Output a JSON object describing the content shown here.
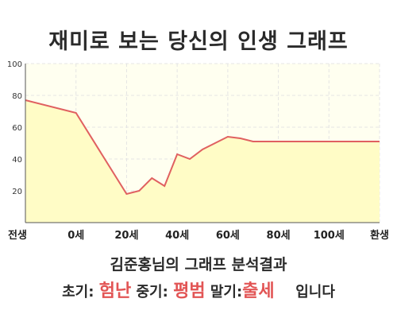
{
  "header": {
    "title": "재미로 보는 당신의 인생 그래프"
  },
  "footer": {
    "subtitle": "김준홍님의 그래프 분석결과",
    "early_label": "초기:",
    "early_value": "험난",
    "mid_label": "중기:",
    "mid_value": "평범",
    "late_label": "말기:",
    "late_value": "출세",
    "tail": "입니다"
  },
  "colors": {
    "line": "#e06060",
    "fill": "#fffcc6",
    "plot_bg": "#fffff0",
    "grid": "#e4e4e4",
    "result": "#e25555"
  },
  "chart_data": {
    "type": "area",
    "title": "재미로 보는 당신의 인생 그래프",
    "xlabel": "",
    "ylabel": "",
    "x_tick_labels": [
      "전생",
      "0세",
      "20세",
      "40세",
      "60세",
      "80세",
      "100세",
      "환생"
    ],
    "x_ticks": [
      -20,
      0,
      20,
      40,
      60,
      80,
      100,
      120
    ],
    "xlim": [
      -20,
      120
    ],
    "y_ticks": [
      20,
      40,
      60,
      80,
      100
    ],
    "ylim": [
      0,
      100
    ],
    "grid": true,
    "series": [
      {
        "x": [
          -20,
          0,
          20,
          25,
          30,
          35,
          40,
          45,
          50,
          55,
          60,
          65,
          70,
          75,
          80,
          85,
          90,
          95,
          100,
          105,
          110,
          115,
          120
        ],
        "y": [
          77,
          69,
          18,
          20,
          28,
          23,
          43,
          40,
          46,
          50,
          54,
          53,
          51,
          51,
          51,
          51,
          51,
          51,
          51,
          51,
          51,
          51,
          51
        ]
      }
    ]
  }
}
